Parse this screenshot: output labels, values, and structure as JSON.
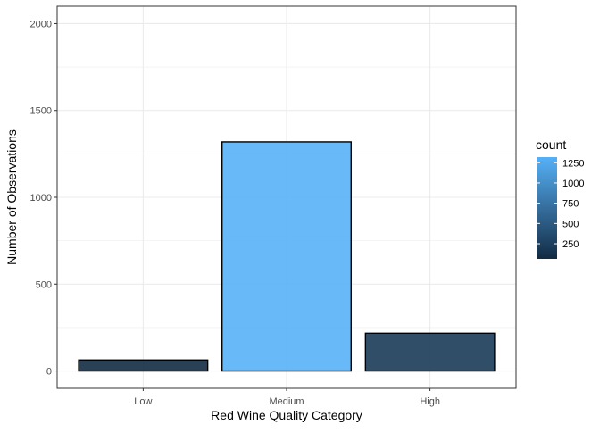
{
  "chart_data": {
    "type": "bar",
    "categories": [
      "Low",
      "Medium",
      "High"
    ],
    "values": [
      63,
      1319,
      217
    ],
    "xlabel": "Red Wine Quality Category",
    "ylabel": "Number of Observations",
    "ylim": [
      -100,
      2100
    ],
    "yticks": [
      0,
      500,
      1000,
      1500,
      2000
    ],
    "grid": true,
    "fill_scale": {
      "title": "count",
      "low_color": "#132B43",
      "high_color": "#56B1F7",
      "range": [
        63,
        1319
      ],
      "breaks": [
        250,
        500,
        750,
        1000,
        1250
      ]
    },
    "legend_position": "right"
  }
}
